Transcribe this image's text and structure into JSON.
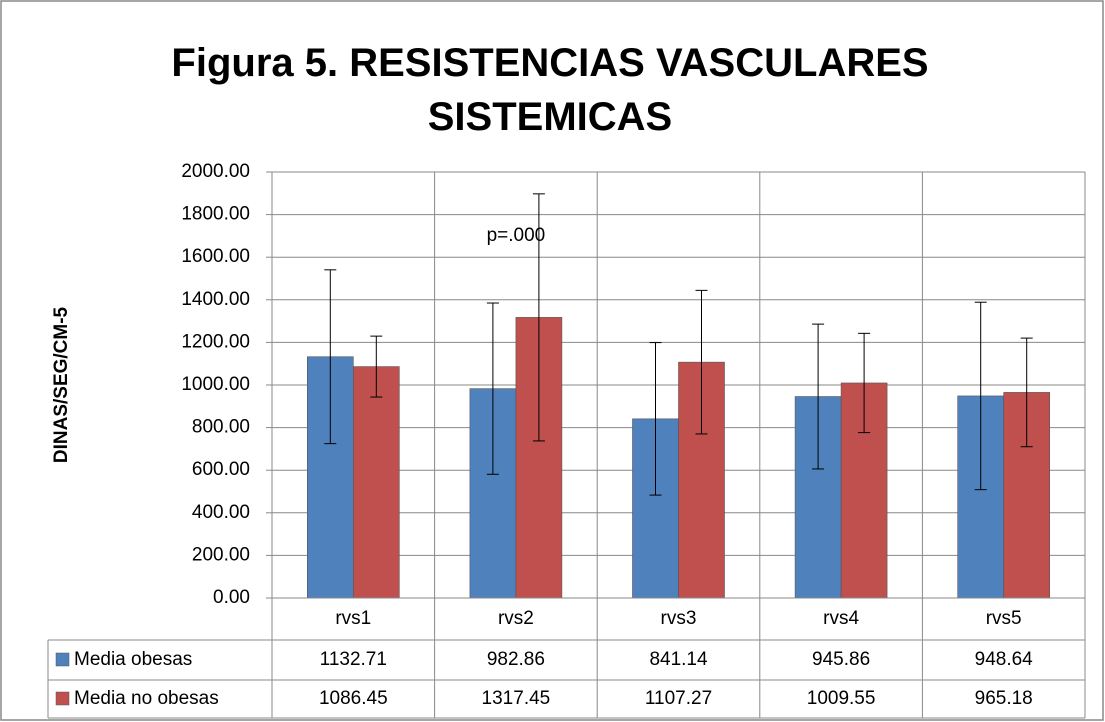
{
  "chart_data": {
    "type": "bar",
    "title": "Figura 5. RESISTENCIAS VASCULARES SISTEMICAS",
    "y_label": "DINAS/SEG/CM-5",
    "annotation": "p=.000",
    "categories": [
      "rvs1",
      "rvs2",
      "rvs3",
      "rvs4",
      "rvs5"
    ],
    "series": [
      {
        "name": "Media obesas",
        "color": "#4f81bd",
        "values": [
          1132.71,
          982.86,
          841.14,
          945.86,
          948.64
        ],
        "errors": [
          408,
          402,
          358,
          340,
          440
        ]
      },
      {
        "name": "Media no obesas",
        "color": "#c0504d",
        "values": [
          1086.45,
          1317.45,
          1107.27,
          1009.55,
          965.18
        ],
        "errors": [
          143,
          580,
          337,
          233,
          255
        ]
      }
    ],
    "ylim": [
      0,
      2000
    ],
    "yticks": [
      {
        "value": 0,
        "label": "0.00"
      },
      {
        "value": 200,
        "label": "200.00"
      },
      {
        "value": 400,
        "label": "400.00"
      },
      {
        "value": 600,
        "label": "600.00"
      },
      {
        "value": 800,
        "label": "800.00"
      },
      {
        "value": 1000,
        "label": "1000.00"
      },
      {
        "value": 1200,
        "label": "1200.00"
      },
      {
        "value": 1400,
        "label": "1400.00"
      },
      {
        "value": 1600,
        "label": "1600.00"
      },
      {
        "value": 1800,
        "label": "1800.00"
      },
      {
        "value": 2000,
        "label": "2000.00"
      }
    ],
    "grid": true
  }
}
